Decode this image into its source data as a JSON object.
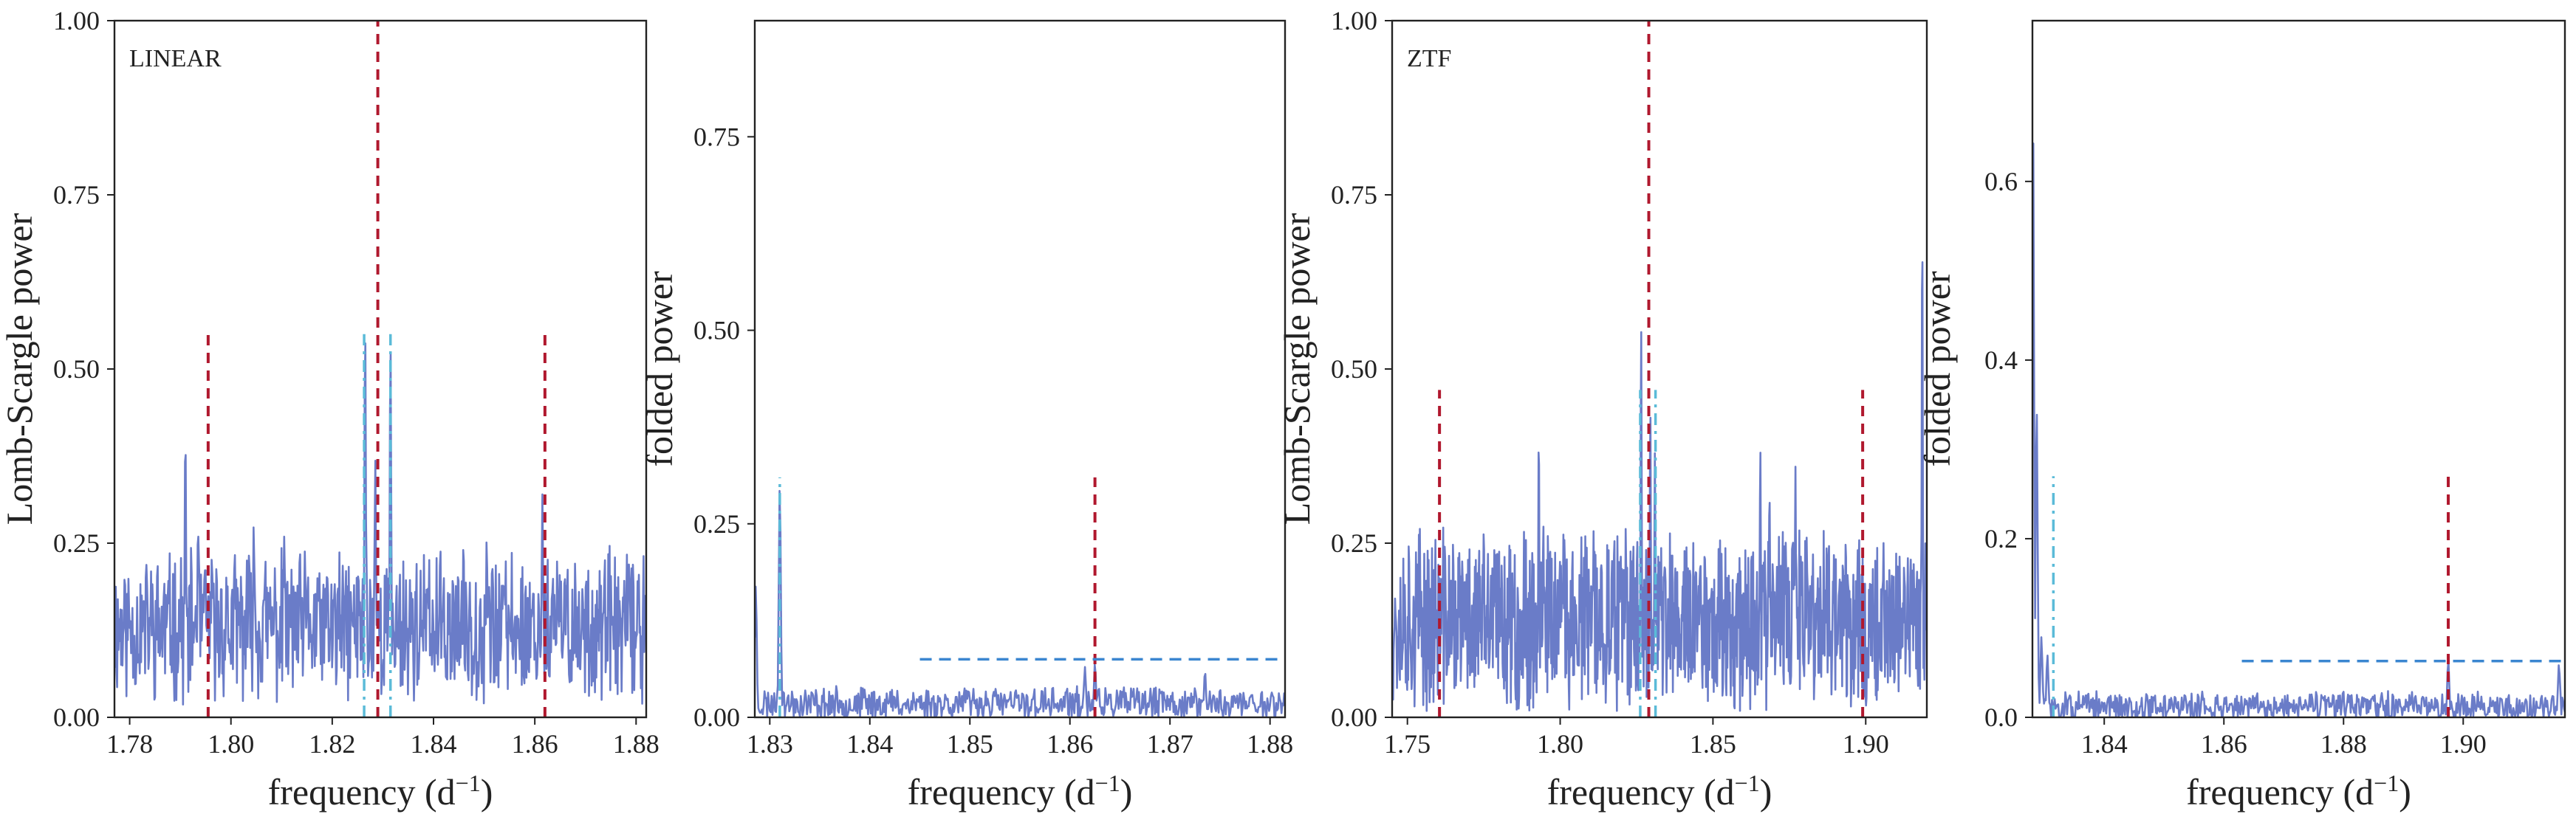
{
  "figure": {
    "colors": {
      "series": "#6a7cc8",
      "red_dashed": "#b0182e",
      "cyan_dashdot": "#5bbbd8",
      "blue_dashed": "#3b86d0",
      "axes": "#222222"
    }
  },
  "chart_data": [
    {
      "type": "line",
      "panel_label": "LINEAR",
      "xlabel": "frequency (d",
      "xlabel_sup": "−1",
      "xlabel_tail": ")",
      "ylabel": "Lomb-Scargle power",
      "xlim": [
        1.777,
        1.882
      ],
      "ylim": [
        0,
        1
      ],
      "xticks": [
        1.78,
        1.8,
        1.82,
        1.84,
        1.86,
        1.88
      ],
      "xtick_labels": [
        "1.78",
        "1.80",
        "1.82",
        "1.84",
        "1.86",
        "1.88"
      ],
      "yticks": [
        0,
        0.25,
        0.5,
        0.75,
        1.0
      ],
      "ytick_labels": [
        "0.00",
        "0.25",
        "0.50",
        "0.75",
        "1.00"
      ],
      "grid": false,
      "series": [
        {
          "style": "noise",
          "x_start": 1.777,
          "x_end": 1.882,
          "n": 800,
          "baseline": 0.13,
          "amplitude": 0.09,
          "seed": 11,
          "peaks": [
            [
              1.791,
              0.41
            ],
            [
              1.7935,
              0.28
            ],
            [
              1.8265,
              0.56
            ],
            [
              1.8285,
              0.37
            ],
            [
              1.8315,
              0.54
            ],
            [
              1.8615,
              0.32
            ],
            [
              1.8045,
              0.28
            ],
            [
              1.8105,
              0.26
            ],
            [
              1.8505,
              0.26
            ]
          ]
        }
      ],
      "vlines": [
        {
          "x": 1.7955,
          "y0": 0,
          "y1": 0.55,
          "style": "red_dashed"
        },
        {
          "x": 1.829,
          "y0": 0,
          "y1": 1.0,
          "style": "red_dashed"
        },
        {
          "x": 1.862,
          "y0": 0,
          "y1": 0.55,
          "style": "red_dashed"
        },
        {
          "x": 1.8263,
          "y0": 0,
          "y1": 0.55,
          "style": "cyan_dashdot"
        },
        {
          "x": 1.8315,
          "y0": 0,
          "y1": 0.55,
          "style": "cyan_dashdot"
        }
      ],
      "hlines": []
    },
    {
      "type": "line",
      "panel_label": "",
      "xlabel": "frequency (d",
      "xlabel_sup": "−1",
      "xlabel_tail": ")",
      "ylabel": "folded power",
      "xlim": [
        1.8285,
        1.8815
      ],
      "ylim": [
        0,
        0.9
      ],
      "xticks": [
        1.83,
        1.84,
        1.85,
        1.86,
        1.87,
        1.88
      ],
      "xtick_labels": [
        "1.83",
        "1.84",
        "1.85",
        "1.86",
        "1.87",
        "1.88"
      ],
      "yticks": [
        0,
        0.25,
        0.5,
        0.75
      ],
      "ytick_labels": [
        "0.00",
        "0.25",
        "0.50",
        "0.75"
      ],
      "grid": false,
      "series": [
        {
          "style": "noise",
          "x_start": 1.8285,
          "x_end": 1.8815,
          "n": 600,
          "baseline": 0.018,
          "amplitude": 0.018,
          "seed": 23,
          "peaks": [
            [
              1.8286,
              0.17
            ],
            [
              1.831,
              0.3
            ],
            [
              1.8625,
              0.07
            ],
            [
              1.8615,
              0.065
            ],
            [
              1.8735,
              0.06
            ]
          ]
        }
      ],
      "vlines": [
        {
          "x": 1.831,
          "y0": 0,
          "y1": 0.31,
          "style": "cyan_dashdot"
        },
        {
          "x": 1.8625,
          "y0": 0,
          "y1": 0.31,
          "style": "red_dashed"
        }
      ],
      "hlines": [
        {
          "y": 0.075,
          "x0": 1.845,
          "x1": 1.8815,
          "style": "blue_dashed"
        }
      ]
    },
    {
      "type": "line",
      "panel_label": "ZTF",
      "xlabel": "frequency (d",
      "xlabel_sup": "−1",
      "xlabel_tail": ")",
      "ylabel": "Lomb-Scargle power",
      "xlim": [
        1.745,
        1.92
      ],
      "ylim": [
        0,
        1
      ],
      "xticks": [
        1.75,
        1.8,
        1.85,
        1.9
      ],
      "xtick_labels": [
        "1.75",
        "1.80",
        "1.85",
        "1.90"
      ],
      "yticks": [
        0,
        0.25,
        0.5,
        0.75,
        1.0
      ],
      "ytick_labels": [
        "0.00",
        "0.25",
        "0.50",
        "0.75",
        "1.00"
      ],
      "grid": false,
      "series": [
        {
          "style": "noise",
          "x_start": 1.745,
          "x_end": 1.92,
          "n": 1100,
          "baseline": 0.14,
          "amplitude": 0.11,
          "seed": 37,
          "peaks": [
            [
              1.793,
              0.41
            ],
            [
              1.8265,
              0.56
            ],
            [
              1.8295,
              0.45
            ],
            [
              1.831,
              0.38
            ],
            [
              1.8655,
              0.39
            ],
            [
              1.877,
              0.36
            ],
            [
              1.8685,
              0.33
            ],
            [
              1.9185,
              0.7
            ]
          ]
        }
      ],
      "vlines": [
        {
          "x": 1.7605,
          "y0": 0,
          "y1": 0.47,
          "style": "red_dashed"
        },
        {
          "x": 1.829,
          "y0": 0,
          "y1": 1.0,
          "style": "red_dashed"
        },
        {
          "x": 1.899,
          "y0": 0,
          "y1": 0.47,
          "style": "red_dashed"
        },
        {
          "x": 1.8262,
          "y0": 0,
          "y1": 0.47,
          "style": "cyan_dashdot"
        },
        {
          "x": 1.8312,
          "y0": 0,
          "y1": 0.47,
          "style": "cyan_dashdot"
        }
      ],
      "hlines": []
    },
    {
      "type": "line",
      "panel_label": "",
      "xlabel": "frequency (d",
      "xlabel_sup": "−1",
      "xlabel_tail": ")",
      "ylabel": "folded power",
      "xlim": [
        1.828,
        1.917
      ],
      "ylim": [
        0,
        0.78
      ],
      "xticks": [
        1.84,
        1.86,
        1.88,
        1.9
      ],
      "xtick_labels": [
        "1.84",
        "1.86",
        "1.88",
        "1.90"
      ],
      "yticks": [
        0,
        0.2,
        0.4,
        0.6
      ],
      "ytick_labels": [
        "0.0",
        "0.2",
        "0.4",
        "0.6"
      ],
      "grid": false,
      "series": [
        {
          "style": "noise",
          "x_start": 1.828,
          "x_end": 1.917,
          "n": 600,
          "baseline": 0.012,
          "amplitude": 0.014,
          "seed": 51,
          "peaks": [
            [
              1.8281,
              0.67
            ],
            [
              1.8287,
              0.35
            ],
            [
              1.8295,
              0.09
            ],
            [
              1.8305,
              0.07
            ],
            [
              1.8975,
              0.065
            ],
            [
              1.916,
              0.06
            ]
          ]
        }
      ],
      "vlines": [
        {
          "x": 1.8315,
          "y0": 0,
          "y1": 0.27,
          "style": "cyan_dashdot"
        },
        {
          "x": 1.8975,
          "y0": 0,
          "y1": 0.27,
          "style": "red_dashed"
        }
      ],
      "hlines": [
        {
          "y": 0.063,
          "x0": 1.863,
          "x1": 1.917,
          "style": "blue_dashed"
        }
      ]
    }
  ]
}
